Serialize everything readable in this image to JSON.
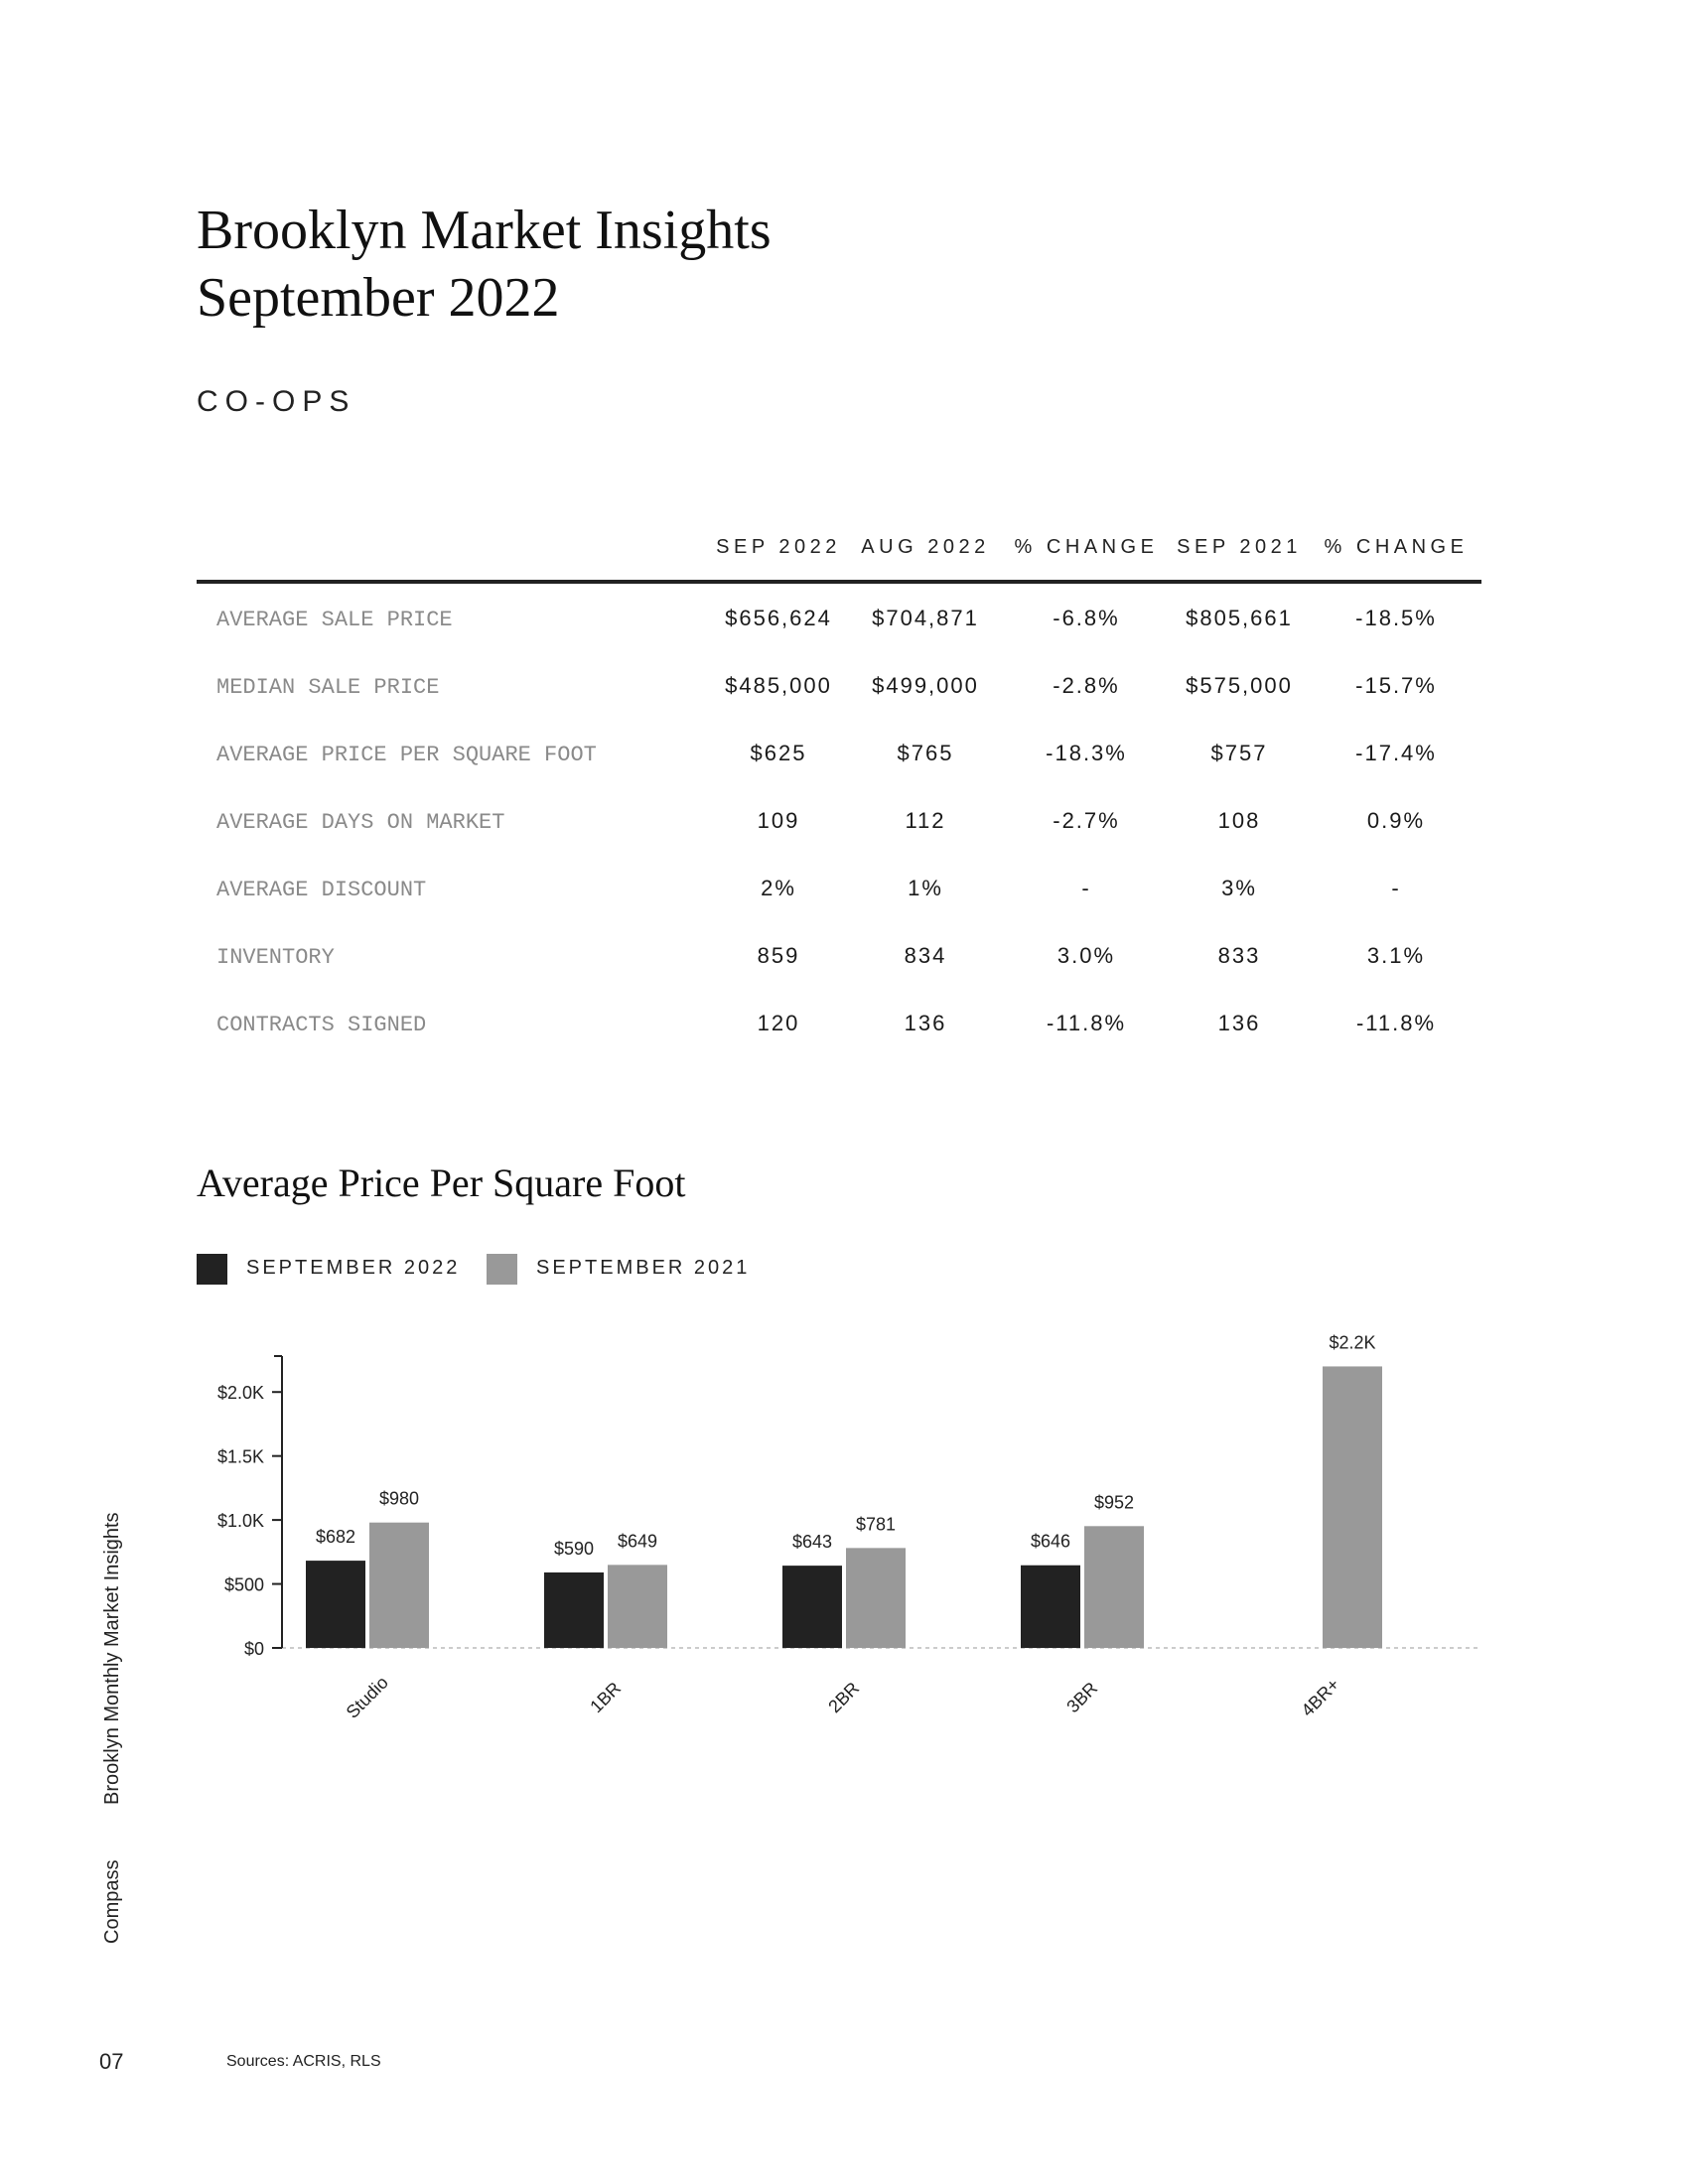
{
  "header": {
    "title_line1": "Brooklyn Market Insights",
    "title_line2": "September 2022",
    "section": "CO-OPS"
  },
  "table": {
    "columns": [
      "SEP 2022",
      "AUG 2022",
      "% CHANGE",
      "SEP 2021",
      "% CHANGE"
    ],
    "rows": [
      {
        "label": "AVERAGE SALE PRICE",
        "values": [
          "$656,624",
          "$704,871",
          "-6.8%",
          "$805,661",
          "-18.5%"
        ]
      },
      {
        "label": "MEDIAN SALE PRICE",
        "values": [
          "$485,000",
          "$499,000",
          "-2.8%",
          "$575,000",
          "-15.7%"
        ]
      },
      {
        "label": "AVERAGE PRICE PER SQUARE FOOT",
        "values": [
          "$625",
          "$765",
          "-18.3%",
          "$757",
          "-17.4%"
        ]
      },
      {
        "label": "AVERAGE DAYS ON MARKET",
        "values": [
          "109",
          "112",
          "-2.7%",
          "108",
          "0.9%"
        ]
      },
      {
        "label": "AVERAGE DISCOUNT",
        "values": [
          "2%",
          "1%",
          "-",
          "3%",
          "-"
        ]
      },
      {
        "label": "INVENTORY",
        "values": [
          "859",
          "834",
          "3.0%",
          "833",
          "3.1%"
        ]
      },
      {
        "label": "CONTRACTS SIGNED",
        "values": [
          "120",
          "136",
          "-11.8%",
          "136",
          "-11.8%"
        ]
      }
    ]
  },
  "chart_data": {
    "type": "bar",
    "title": "Average Price Per Square Foot",
    "categories": [
      "Studio",
      "1BR",
      "2BR",
      "3BR",
      "4BR+"
    ],
    "series": [
      {
        "name": "SEPTEMBER 2022",
        "color": "#222222",
        "values": [
          682,
          590,
          643,
          646,
          null
        ],
        "labels": [
          "$682",
          "$590",
          "$643",
          "$646",
          ""
        ]
      },
      {
        "name": "SEPTEMBER 2021",
        "color": "#999999",
        "values": [
          980,
          649,
          781,
          952,
          2200
        ],
        "labels": [
          "$980",
          "$649",
          "$781",
          "$952",
          "$2.2K"
        ]
      }
    ],
    "yticks": [
      0,
      500,
      1000,
      1500,
      2000
    ],
    "ytick_labels": [
      "$0",
      "$500",
      "$1.0K",
      "$1.5K",
      "$2.0K"
    ],
    "ylim": [
      0,
      2250
    ],
    "legend_position": "top-left",
    "grid": false
  },
  "footer": {
    "side_brand": "Compass",
    "side_title": "Brooklyn Monthly Market Insights",
    "page_number": "07",
    "sources": "Sources: ACRIS, RLS"
  }
}
